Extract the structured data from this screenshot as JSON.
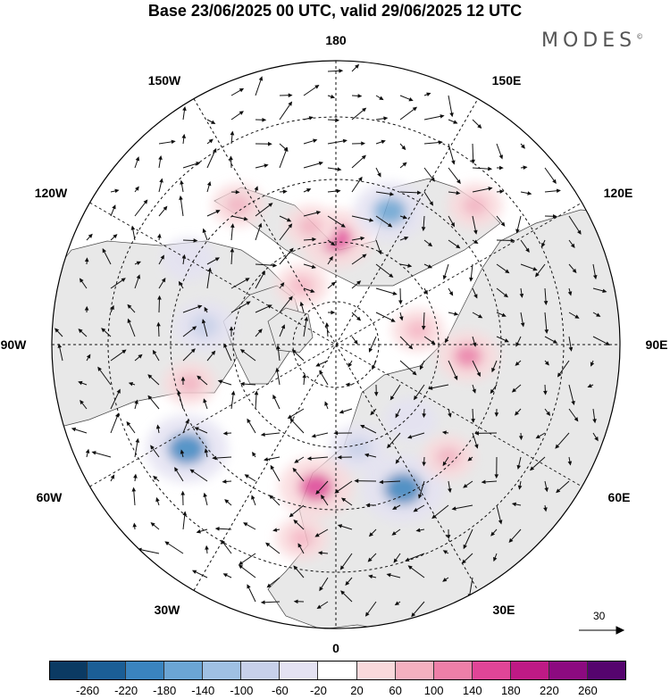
{
  "title": "Base 23/06/2025 00 UTC, valid 29/06/2025 12 UTC",
  "logo": "MODES",
  "logo_mark": "©",
  "longitude_labels": {
    "deg180": "180",
    "w150": "150W",
    "e150": "150E",
    "w120": "120W",
    "e120": "120E",
    "w90": "90W",
    "e90": "90E",
    "w60": "60W",
    "e60": "60E",
    "w30": "30W",
    "e30": "30E",
    "deg0": "0"
  },
  "reference_vector": {
    "label": "30"
  },
  "legend": {
    "ticks": [
      "-260",
      "-220",
      "-180",
      "-140",
      "-100",
      "-60",
      "-20",
      "20",
      "60",
      "100",
      "140",
      "180",
      "220",
      "260"
    ],
    "colors": [
      "#0b3a63",
      "#1b5e96",
      "#3a84bf",
      "#6ba5d4",
      "#9fc0e3",
      "#c7d0ea",
      "#e4e2f2",
      "#ffffff",
      "#f9d9dc",
      "#f4b0c0",
      "#ee7fa8",
      "#e04597",
      "#be1a85",
      "#8c0a80",
      "#55046e"
    ]
  },
  "anomalies": [
    {
      "lon": 180,
      "lat": 62,
      "value": 150
    },
    {
      "lon": -168,
      "lat": 58,
      "value": 60
    },
    {
      "lon": 158,
      "lat": 52,
      "value": -150
    },
    {
      "lon": 135,
      "lat": 38,
      "value": 70
    },
    {
      "lon": -145,
      "lat": 45,
      "value": 60
    },
    {
      "lon": -120,
      "lat": 45,
      "value": -60
    },
    {
      "lon": -98,
      "lat": 55,
      "value": -100
    },
    {
      "lon": -75,
      "lat": 50,
      "value": 60
    },
    {
      "lon": -55,
      "lat": 42,
      "value": -200
    },
    {
      "lon": -8,
      "lat": 52,
      "value": 160
    },
    {
      "lon": -10,
      "lat": 38,
      "value": 60
    },
    {
      "lon": 25,
      "lat": 48,
      "value": -200
    },
    {
      "lon": 45,
      "lat": 48,
      "value": 60
    },
    {
      "lon": 12,
      "lat": 62,
      "value": -80
    },
    {
      "lon": 85,
      "lat": 55,
      "value": 100
    },
    {
      "lon": 100,
      "lat": 68,
      "value": 60
    },
    {
      "lon": -150,
      "lat": 72,
      "value": 60
    },
    {
      "lon": 45,
      "lat": 62,
      "value": -60
    }
  ]
}
